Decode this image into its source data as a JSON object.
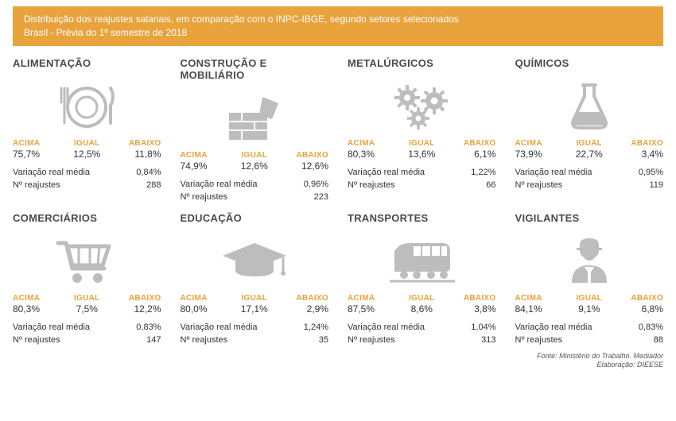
{
  "header": {
    "line1": "Distribuição dos reajustes salariais, em comparação com o INPC-IBGE, segundo setores selecionados",
    "line2": "Brasil -  Prévia do 1º semestre de 2018",
    "bg_color": "#e8a33d",
    "text_color": "#ffffff",
    "fontsize": 12
  },
  "labels": {
    "acima": "ACIMA",
    "igual": "IGUAL",
    "abaixo": "ABAIXO",
    "variacao": "Variação real média",
    "n_reajustes": "Nº reajustes"
  },
  "style": {
    "accent_color": "#e8a33d",
    "title_color": "#4a4a4a",
    "value_color": "#333333",
    "icon_color": "#bdbdbd",
    "title_fontsize": 13,
    "cat_label_fontsize": 10,
    "cat_value_fontsize": 12,
    "metric_fontsize": 11
  },
  "sectors": [
    {
      "title": "ALIMENTAÇÃO",
      "icon": "food",
      "acima": "75,7%",
      "igual": "12,5%",
      "abaixo": "11,8%",
      "variacao": "0,84%",
      "n": "288"
    },
    {
      "title": "CONSTRUÇÃO E MOBILIÁRIO",
      "icon": "construction",
      "acima": "74,9%",
      "igual": "12,6%",
      "abaixo": "12,6%",
      "variacao": "0,96%",
      "n": "223"
    },
    {
      "title": "METALÚRGICOS",
      "icon": "gears",
      "acima": "80,3%",
      "igual": "13,6%",
      "abaixo": "6,1%",
      "variacao": "1,22%",
      "n": "66"
    },
    {
      "title": "QUÍMICOS",
      "icon": "flask",
      "acima": "73,9%",
      "igual": "22,7%",
      "abaixo": "3,4%",
      "variacao": "0,95%",
      "n": "119"
    },
    {
      "title": "COMERCIÁRIOS",
      "icon": "cart",
      "acima": "80,3%",
      "igual": "7,5%",
      "abaixo": "12,2%",
      "variacao": "0,83%",
      "n": "147"
    },
    {
      "title": "EDUCAÇÃO",
      "icon": "gradcap",
      "acima": "80,0%",
      "igual": "17,1%",
      "abaixo": "2,9%",
      "variacao": "1,24%",
      "n": "35"
    },
    {
      "title": "TRANSPORTES",
      "icon": "train",
      "acima": "87,5%",
      "igual": "8,6%",
      "abaixo": "3,8%",
      "variacao": "1,04%",
      "n": "313"
    },
    {
      "title": "VIGILANTES",
      "icon": "guard",
      "acima": "84,1%",
      "igual": "9,1%",
      "abaixo": "6,8%",
      "variacao": "0,83%",
      "n": "88"
    }
  ],
  "footer": {
    "line1": "Fonte: Ministério do Trabalho. Mediador",
    "line2": "Elaboração: DIEESE"
  }
}
